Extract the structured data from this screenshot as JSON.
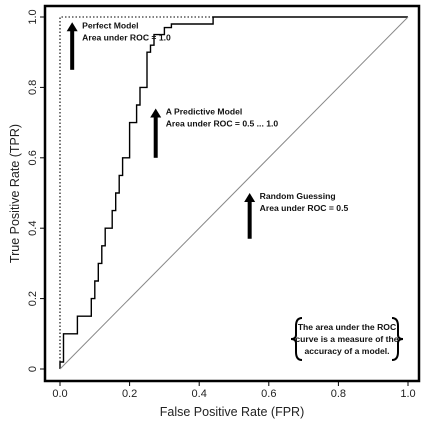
{
  "chart_data": {
    "type": "line",
    "title": "",
    "xlabel": "False Positive Rate (FPR)",
    "ylabel": "True Positive Rate (TPR)",
    "xlim": [
      0,
      1
    ],
    "ylim": [
      0,
      1
    ],
    "x_ticks": [
      "0.0",
      "0.2",
      "0.4",
      "0.6",
      "0.8",
      "1.0"
    ],
    "y_ticks": [
      "0",
      "0.2",
      "0.4",
      "0.6",
      "0.8",
      "1.0"
    ],
    "grid": false,
    "series": [
      {
        "style": "dotted",
        "color": "#000000",
        "x": [
          0,
          0,
          1
        ],
        "y": [
          0,
          1,
          1
        ]
      },
      {
        "style": "solid",
        "color": "#000000",
        "x": [
          0,
          0,
          0.01,
          0.01,
          0.05,
          0.05,
          0.09,
          0.09,
          0.1,
          0.1,
          0.11,
          0.11,
          0.12,
          0.12,
          0.13,
          0.13,
          0.15,
          0.15,
          0.16,
          0.16,
          0.17,
          0.17,
          0.18,
          0.18,
          0.2,
          0.2,
          0.22,
          0.22,
          0.23,
          0.23,
          0.25,
          0.25,
          0.26,
          0.26,
          0.27,
          0.27,
          0.3,
          0.3,
          0.32,
          0.32,
          0.44,
          0.44,
          1.0
        ],
        "y": [
          0,
          0.02,
          0.02,
          0.1,
          0.1,
          0.15,
          0.15,
          0.2,
          0.2,
          0.25,
          0.25,
          0.3,
          0.3,
          0.35,
          0.35,
          0.4,
          0.4,
          0.45,
          0.45,
          0.5,
          0.5,
          0.55,
          0.55,
          0.6,
          0.6,
          0.7,
          0.7,
          0.75,
          0.75,
          0.8,
          0.8,
          0.9,
          0.9,
          0.92,
          0.92,
          0.95,
          0.95,
          0.97,
          0.97,
          0.98,
          0.98,
          1.0,
          1.0
        ]
      },
      {
        "style": "solid-thin",
        "color": "#888888",
        "x": [
          0,
          1
        ],
        "y": [
          0,
          1
        ]
      }
    ],
    "annotations": [
      {
        "lines": [
          "Perfect Model",
          "Area under ROC = 1.0"
        ],
        "arrow_from": [
          0.035,
          0.85
        ],
        "arrow_to": [
          0.035,
          0.985
        ]
      },
      {
        "lines": [
          "A Predictive Model",
          "Area under ROC = 0.5 ... 1.0"
        ],
        "arrow_from": [
          0.275,
          0.6
        ],
        "arrow_to": [
          0.275,
          0.74
        ]
      },
      {
        "lines": [
          "Random Guessing",
          "Area under ROC = 0.5"
        ],
        "arrow_from": [
          0.545,
          0.37
        ],
        "arrow_to": [
          0.545,
          0.5
        ]
      }
    ],
    "note": [
      "The area under the ROC",
      "curve is a measure of the",
      "accuracy of a model."
    ]
  }
}
